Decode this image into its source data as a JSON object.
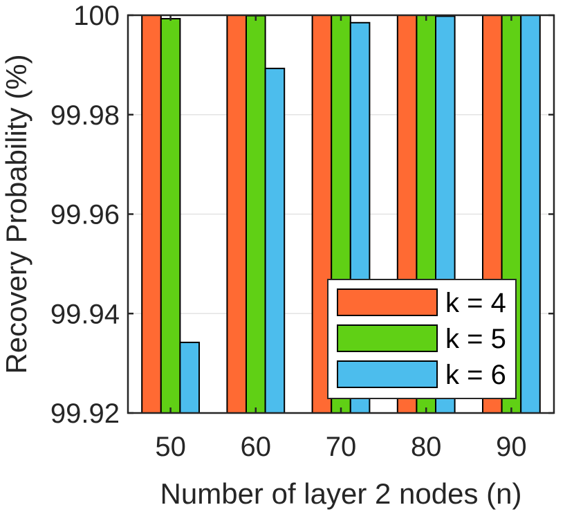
{
  "chart_data": {
    "type": "bar",
    "title": "",
    "xlabel": "Number of layer 2 nodes (n)",
    "ylabel": "Recovery Probability (%)",
    "categories": [
      "50",
      "60",
      "70",
      "80",
      "90"
    ],
    "ylim": [
      99.92,
      100
    ],
    "yticks": [
      99.92,
      99.94,
      99.96,
      99.98,
      100
    ],
    "ytick_labels": [
      "99.92",
      "99.94",
      "99.96",
      "99.98",
      "100"
    ],
    "grid": "horizontal",
    "legend_position": "bottom-right",
    "series": [
      {
        "name": "k = 4",
        "color": "#FF6A33",
        "values": [
          100,
          100,
          100,
          100,
          100
        ]
      },
      {
        "name": "k = 5",
        "color": "#60D015",
        "values": [
          99.9993,
          99.9999,
          100,
          100,
          100
        ]
      },
      {
        "name": "k = 6",
        "color": "#4CBDED",
        "values": [
          99.9342,
          99.9893,
          99.9985,
          99.9998,
          100
        ]
      }
    ]
  }
}
